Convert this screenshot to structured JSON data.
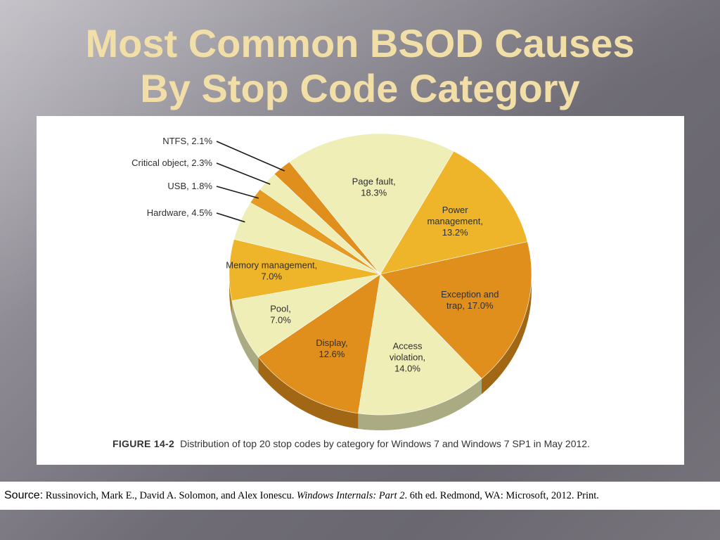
{
  "slide": {
    "title_line1": "Most Common BSOD Causes",
    "title_line2": "By Stop Code Category"
  },
  "figure": {
    "label": "FIGURE 14-2",
    "caption": "Distribution of top 20 stop codes by category for Windows 7 and Windows 7 SP1 in May 2012."
  },
  "source": {
    "label": "Source:",
    "authors": " Russinovich, Mark E., David A. Solomon, and Alex Ionescu. ",
    "book_title": "Windows Internals: Part 2",
    "rest": ". 6th ed. Redmond, WA: Microsoft, 2012. Print."
  },
  "colors": {
    "title": "#f2dfa8",
    "pale_yellow": "#eeeeb6",
    "gold": "#eeb52a",
    "orange": "#e08f1c"
  },
  "chart_data": {
    "type": "pie",
    "title": "",
    "unit": "%",
    "slices": [
      {
        "label": "Page fault",
        "value": 18.3,
        "display": "Page fault,|18.3%",
        "color": "#eeeeb6"
      },
      {
        "label": "Power management",
        "value": 13.2,
        "display": "Power|management,|13.2%",
        "color": "#eeb52a"
      },
      {
        "label": "Exception and trap",
        "value": 17.0,
        "display": "Exception and|trap, 17.0%",
        "color": "#e08f1c"
      },
      {
        "label": "Access violation",
        "value": 14.0,
        "display": "Access|violation,|14.0%",
        "color": "#eeeeb6"
      },
      {
        "label": "Display",
        "value": 12.6,
        "display": "Display,|12.6%",
        "color": "#e08f1c"
      },
      {
        "label": "Pool",
        "value": 7.0,
        "display": "Pool,|7.0%",
        "color": "#eeeeb6"
      },
      {
        "label": "Memory management",
        "value": 7.0,
        "display": "Memory management,|7.0%",
        "color": "#eeb52a"
      },
      {
        "label": "Hardware",
        "value": 4.5,
        "display": "Hardware, 4.5%",
        "color": "#eeeeb6"
      },
      {
        "label": "USB",
        "value": 1.8,
        "display": "USB, 1.8%",
        "color": "#e59a22"
      },
      {
        "label": "Critical object",
        "value": 2.3,
        "display": "Critical object, 2.3%",
        "color": "#eeeeb6"
      },
      {
        "label": "NTFS",
        "value": 2.1,
        "display": "NTFS, 2.1%",
        "color": "#e08f1c"
      }
    ]
  }
}
